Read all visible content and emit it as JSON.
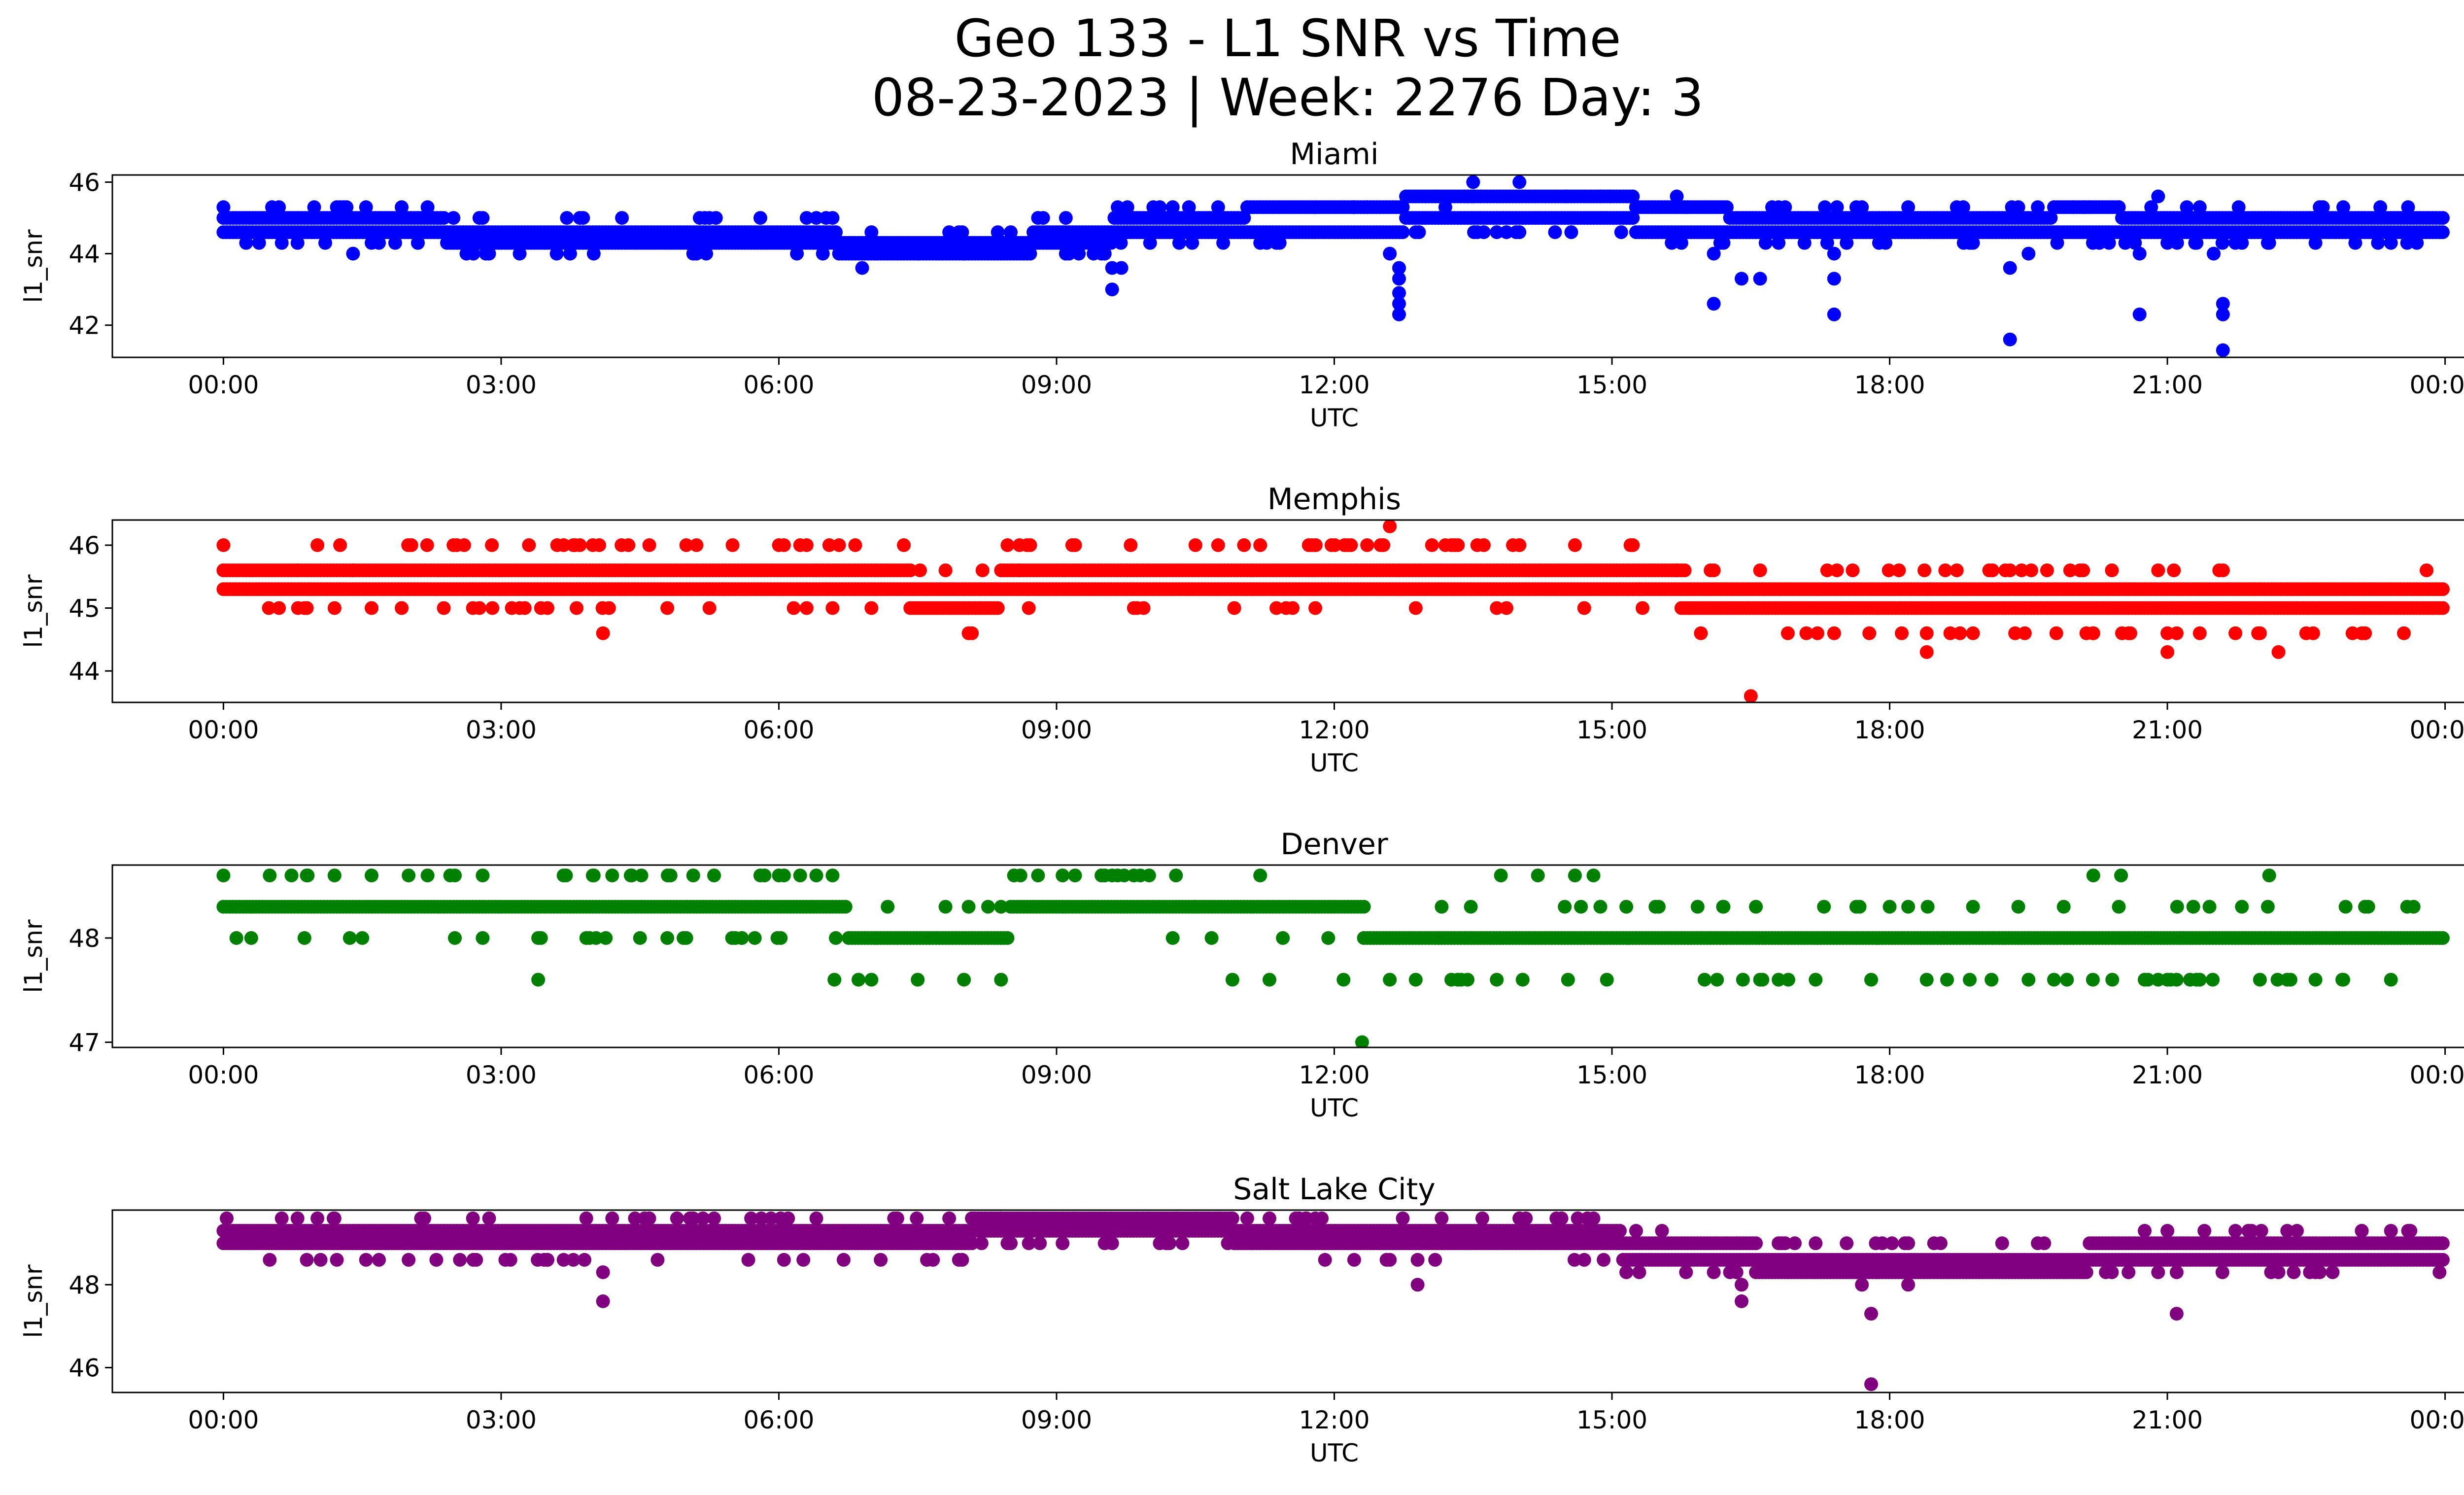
{
  "figure": {
    "title_line1": "Geo 133 - L1 SNR vs Time",
    "title_line2": "08-23-2023 | Week: 2276 Day: 3"
  },
  "chart_data": [
    {
      "type": "scatter",
      "title": "Miami",
      "xlabel": "UTC",
      "ylabel": "l1_snr",
      "color": "#0000ff",
      "xticks": [
        "00:00",
        "03:00",
        "06:00",
        "09:00",
        "12:00",
        "15:00",
        "18:00",
        "21:00",
        "00:00"
      ],
      "xlim_hours": [
        -1.2,
        25.2
      ],
      "ylim": [
        41.1,
        46.2
      ],
      "yticks": [
        42,
        44,
        46
      ],
      "levels": [
        44.0,
        44.3,
        44.6,
        45.0,
        45.3,
        45.6
      ],
      "baseline": [
        [
          0,
          44.6,
          45.0
        ],
        [
          1,
          44.6,
          45.0
        ],
        [
          2,
          44.6,
          45.0
        ],
        [
          2.8,
          44.3,
          44.6
        ],
        [
          3.5,
          44.3,
          44.6
        ],
        [
          5,
          44.3,
          44.6
        ],
        [
          6.5,
          44.3,
          44.6
        ],
        [
          6.8,
          44.0,
          44.3
        ],
        [
          8.5,
          44.0,
          44.3
        ],
        [
          9,
          44.3,
          44.6
        ],
        [
          10.2,
          44.6,
          45.0
        ],
        [
          11,
          44.6,
          45.0
        ],
        [
          11.1,
          44.6,
          45.3
        ],
        [
          12,
          44.6,
          45.3
        ],
        [
          13.5,
          45.0,
          45.6
        ],
        [
          15,
          45.0,
          45.6
        ],
        [
          15.5,
          44.6,
          45.3
        ],
        [
          17,
          44.6,
          45.0
        ],
        [
          19.5,
          44.6,
          45.0
        ],
        [
          20,
          44.6,
          45.3
        ],
        [
          21,
          44.6,
          45.0
        ],
        [
          24,
          44.6,
          45.0
        ]
      ],
      "points": [
        [
          0.0,
          45.3
        ],
        [
          0.6,
          45.3
        ],
        [
          1.3,
          45.3
        ],
        [
          0.8,
          44.3
        ],
        [
          1.1,
          44.3
        ],
        [
          1.4,
          44.0
        ],
        [
          1.6,
          44.3
        ],
        [
          2.1,
          44.3
        ],
        [
          2.7,
          44.0
        ],
        [
          3.2,
          44.0
        ],
        [
          3.6,
          44.0
        ],
        [
          4.0,
          44.0
        ],
        [
          5.2,
          45.0
        ],
        [
          5.8,
          45.0
        ],
        [
          6.3,
          45.0
        ],
        [
          6.9,
          43.6
        ],
        [
          7.5,
          44.0
        ],
        [
          8.0,
          44.0
        ],
        [
          8.8,
          45.0
        ],
        [
          9.1,
          45.0
        ],
        [
          9.6,
          43.6
        ],
        [
          9.6,
          43.0
        ],
        [
          9.7,
          43.6
        ],
        [
          9.4,
          44.0
        ],
        [
          10.8,
          44.3
        ],
        [
          11.2,
          44.3
        ],
        [
          12.2,
          45.3
        ],
        [
          12.6,
          44.0
        ],
        [
          12.7,
          43.6
        ],
        [
          12.7,
          43.3
        ],
        [
          12.7,
          42.9
        ],
        [
          12.7,
          42.6
        ],
        [
          12.7,
          42.3
        ],
        [
          13.2,
          45.3
        ],
        [
          13.5,
          45.6
        ],
        [
          13.5,
          46.0
        ],
        [
          14.0,
          46.0
        ],
        [
          14.0,
          44.6
        ],
        [
          14.5,
          45.6
        ],
        [
          15.1,
          44.6
        ],
        [
          15.7,
          45.6
        ],
        [
          16.1,
          44.0
        ],
        [
          16.1,
          42.6
        ],
        [
          16.4,
          43.3
        ],
        [
          16.6,
          43.3
        ],
        [
          16.8,
          44.3
        ],
        [
          17.3,
          45.3
        ],
        [
          17.4,
          44.0
        ],
        [
          17.4,
          43.3
        ],
        [
          17.4,
          42.3
        ],
        [
          17.7,
          45.3
        ],
        [
          18.2,
          45.3
        ],
        [
          18.8,
          44.3
        ],
        [
          19.3,
          43.6
        ],
        [
          19.3,
          41.6
        ],
        [
          19.5,
          44.0
        ],
        [
          20.1,
          45.3
        ],
        [
          20.7,
          44.0
        ],
        [
          20.7,
          42.3
        ],
        [
          20.9,
          45.6
        ],
        [
          21.3,
          44.3
        ],
        [
          21.5,
          44.0
        ],
        [
          21.6,
          42.6
        ],
        [
          21.6,
          42.3
        ],
        [
          21.6,
          41.3
        ],
        [
          22.1,
          44.3
        ],
        [
          22.6,
          44.3
        ],
        [
          22.9,
          45.3
        ],
        [
          23.3,
          45.3
        ],
        [
          23.6,
          45.3
        ]
      ]
    },
    {
      "type": "scatter",
      "title": "Memphis",
      "xlabel": "UTC",
      "ylabel": "l1_snr",
      "color": "#ff0000",
      "xticks": [
        "00:00",
        "03:00",
        "06:00",
        "09:00",
        "12:00",
        "15:00",
        "18:00",
        "21:00",
        "00:00"
      ],
      "xlim_hours": [
        -1.2,
        25.2
      ],
      "ylim": [
        43.5,
        46.4
      ],
      "yticks": [
        44,
        45,
        46
      ],
      "levels": [
        44.3,
        44.6,
        45.0,
        45.3,
        45.6,
        46.0
      ],
      "baseline": [
        [
          0,
          45.3,
          45.6
        ],
        [
          2,
          45.3,
          45.6
        ],
        [
          3,
          45.3,
          45.6
        ],
        [
          5,
          45.3,
          45.6
        ],
        [
          6,
          45.3,
          45.6
        ],
        [
          7.3,
          45.3,
          45.6
        ],
        [
          7.6,
          45.0,
          45.3
        ],
        [
          8.2,
          45.0,
          45.3
        ],
        [
          8.6,
          45.3,
          45.6
        ],
        [
          11,
          45.3,
          45.6
        ],
        [
          13,
          45.3,
          45.6
        ],
        [
          15.5,
          45.3,
          45.6
        ],
        [
          16,
          45.0,
          45.3
        ],
        [
          24,
          45.0,
          45.3
        ]
      ],
      "points": [
        [
          0.0,
          45.6
        ],
        [
          0.8,
          45.6
        ],
        [
          0.6,
          45.0
        ],
        [
          0.9,
          45.0
        ],
        [
          1.2,
          45.0
        ],
        [
          1.6,
          45.0
        ],
        [
          1.4,
          45.6
        ],
        [
          2.2,
          46.0
        ],
        [
          2.6,
          46.0
        ],
        [
          2.9,
          46.0
        ],
        [
          3.3,
          46.0
        ],
        [
          3.2,
          45.0
        ],
        [
          3.5,
          45.0
        ],
        [
          3.8,
          46.0
        ],
        [
          4.1,
          44.6
        ],
        [
          4.3,
          46.0
        ],
        [
          4.6,
          46.0
        ],
        [
          5.0,
          46.0
        ],
        [
          5.5,
          46.0
        ],
        [
          6.0,
          46.0
        ],
        [
          5.4,
          45.3
        ],
        [
          6.3,
          45.0
        ],
        [
          7.0,
          45.0
        ],
        [
          7.8,
          45.6
        ],
        [
          8.2,
          45.6
        ],
        [
          8.6,
          46.0
        ],
        [
          8.6,
          45.6
        ],
        [
          8.7,
          45.0
        ],
        [
          9.2,
          46.0
        ],
        [
          9.8,
          46.0
        ],
        [
          10.5,
          46.0
        ],
        [
          11.2,
          46.0
        ],
        [
          11.8,
          46.0
        ],
        [
          12.5,
          46.0
        ],
        [
          12.6,
          46.3
        ],
        [
          13.2,
          46.0
        ],
        [
          14.0,
          46.0
        ],
        [
          14.6,
          46.0
        ],
        [
          15.2,
          46.0
        ],
        [
          15.3,
          45.3
        ],
        [
          15.7,
          45.6
        ],
        [
          16.1,
          45.6
        ],
        [
          16.5,
          43.6
        ],
        [
          16.6,
          45.6
        ],
        [
          16.9,
          44.6
        ],
        [
          17.1,
          44.6
        ],
        [
          17.4,
          44.6
        ],
        [
          17.6,
          45.6
        ],
        [
          18.1,
          45.6
        ],
        [
          18.4,
          44.6
        ],
        [
          18.4,
          44.3
        ],
        [
          18.6,
          45.6
        ],
        [
          18.9,
          44.6
        ],
        [
          19.3,
          45.6
        ],
        [
          19.7,
          45.6
        ],
        [
          19.8,
          44.6
        ],
        [
          20.2,
          44.6
        ],
        [
          20.4,
          45.6
        ],
        [
          20.6,
          44.6
        ],
        [
          20.9,
          45.6
        ],
        [
          21.0,
          44.3
        ],
        [
          21.1,
          44.6
        ],
        [
          21.6,
          45.6
        ],
        [
          22.0,
          44.6
        ],
        [
          22.2,
          44.3
        ],
        [
          22.5,
          44.6
        ],
        [
          23.0,
          44.6
        ],
        [
          23.8,
          45.6
        ]
      ]
    },
    {
      "type": "scatter",
      "title": "Denver",
      "xlabel": "UTC",
      "ylabel": "l1_snr",
      "color": "#008000",
      "xticks": [
        "00:00",
        "03:00",
        "06:00",
        "09:00",
        "12:00",
        "15:00",
        "18:00",
        "21:00",
        "00:00"
      ],
      "xlim_hours": [
        -1.2,
        25.2
      ],
      "ylim": [
        46.95,
        48.7
      ],
      "yticks": [
        47,
        48
      ],
      "levels": [
        47.6,
        48.0,
        48.3,
        48.6
      ],
      "baseline": [
        [
          0,
          48.3
        ],
        [
          6.5,
          48.3
        ],
        [
          7.0,
          48.0
        ],
        [
          8.4,
          48.0
        ],
        [
          8.6,
          48.3
        ],
        [
          12.2,
          48.3
        ],
        [
          12.5,
          48.0
        ],
        [
          24,
          48.0
        ]
      ],
      "points": [
        [
          0.0,
          48.6
        ],
        [
          0.5,
          48.6
        ],
        [
          0.9,
          48.6
        ],
        [
          1.2,
          48.6
        ],
        [
          1.6,
          48.6
        ],
        [
          2.0,
          48.6
        ],
        [
          2.5,
          48.6
        ],
        [
          2.8,
          48.6
        ],
        [
          3.7,
          48.6
        ],
        [
          4.0,
          48.6
        ],
        [
          4.4,
          48.6
        ],
        [
          4.8,
          48.6
        ],
        [
          5.3,
          48.6
        ],
        [
          5.8,
          48.6
        ],
        [
          6.0,
          48.6
        ],
        [
          0.3,
          48.0
        ],
        [
          1.5,
          48.0
        ],
        [
          2.5,
          48.0
        ],
        [
          3.4,
          48.0
        ],
        [
          4.5,
          48.0
        ],
        [
          5.0,
          48.0
        ],
        [
          5.6,
          48.0
        ],
        [
          3.4,
          47.6
        ],
        [
          6.6,
          47.6
        ],
        [
          7.0,
          47.6
        ],
        [
          7.5,
          47.6
        ],
        [
          8.0,
          47.6
        ],
        [
          8.4,
          47.6
        ],
        [
          8.8,
          48.6
        ],
        [
          9.2,
          48.6
        ],
        [
          9.6,
          48.6
        ],
        [
          10.0,
          48.6
        ],
        [
          10.9,
          47.6
        ],
        [
          11.3,
          47.6
        ],
        [
          12.1,
          47.6
        ],
        [
          12.3,
          47.0
        ],
        [
          12.6,
          47.6
        ],
        [
          13.8,
          48.6
        ],
        [
          14.2,
          48.6
        ],
        [
          14.6,
          48.6
        ],
        [
          14.8,
          48.6
        ],
        [
          16.0,
          47.6
        ],
        [
          16.6,
          47.6
        ],
        [
          17.2,
          47.6
        ],
        [
          17.8,
          47.6
        ],
        [
          18.4,
          47.6
        ],
        [
          19.1,
          47.6
        ],
        [
          19.5,
          47.6
        ],
        [
          7.8,
          48.3
        ],
        [
          10.5,
          48.3
        ],
        [
          16.2,
          48.3
        ],
        [
          18.0,
          48.3
        ],
        [
          18.9,
          48.3
        ],
        [
          20.2,
          48.6
        ],
        [
          20.5,
          48.6
        ],
        [
          20.9,
          47.6
        ],
        [
          21.1,
          47.6
        ],
        [
          22.0,
          47.6
        ],
        [
          22.1,
          48.6
        ],
        [
          22.6,
          47.6
        ],
        [
          22.9,
          47.6
        ]
      ]
    },
    {
      "type": "scatter",
      "title": "Salt Lake City",
      "xlabel": "UTC",
      "ylabel": "l1_snr",
      "color": "#800080",
      "xticks": [
        "00:00",
        "03:00",
        "06:00",
        "09:00",
        "12:00",
        "15:00",
        "18:00",
        "21:00",
        "00:00"
      ],
      "xlim_hours": [
        -1.2,
        25.2
      ],
      "ylim": [
        45.4,
        49.8
      ],
      "yticks": [
        46,
        48
      ],
      "levels": [
        48.3,
        48.6,
        49.0,
        49.3,
        49.6
      ],
      "baseline": [
        [
          0,
          49.0,
          49.3
        ],
        [
          8,
          49.0,
          49.3
        ],
        [
          8.2,
          49.3,
          49.6
        ],
        [
          10.8,
          49.3,
          49.6
        ],
        [
          11,
          49.0,
          49.3
        ],
        [
          15,
          49.0,
          49.3
        ],
        [
          15.2,
          48.6,
          49.0
        ],
        [
          16.5,
          48.6,
          49.0
        ],
        [
          16.6,
          48.3,
          48.6
        ],
        [
          20.1,
          48.3,
          48.6
        ],
        [
          20.2,
          48.6,
          49.0
        ],
        [
          24,
          48.6,
          49.0
        ]
      ],
      "points": [
        [
          0.5,
          48.6
        ],
        [
          0.8,
          49.6
        ],
        [
          0.9,
          48.6
        ],
        [
          1.2,
          49.6
        ],
        [
          2.0,
          48.6
        ],
        [
          2.3,
          48.6
        ],
        [
          2.7,
          48.6
        ],
        [
          3.1,
          48.6
        ],
        [
          3.5,
          48.6
        ],
        [
          3.9,
          48.6
        ],
        [
          4.1,
          48.3
        ],
        [
          4.1,
          47.6
        ],
        [
          4.2,
          49.6
        ],
        [
          4.6,
          49.6
        ],
        [
          4.9,
          49.6
        ],
        [
          5.3,
          49.6
        ],
        [
          5.7,
          49.6
        ],
        [
          6.1,
          49.6
        ],
        [
          6.7,
          48.6
        ],
        [
          7.1,
          48.6
        ],
        [
          7.6,
          48.6
        ],
        [
          8.1,
          49.6
        ],
        [
          8.4,
          49.6
        ],
        [
          8.7,
          49.0
        ],
        [
          9.2,
          49.6
        ],
        [
          9.6,
          49.0
        ],
        [
          10.0,
          49.6
        ],
        [
          10.5,
          49.6
        ],
        [
          10.9,
          49.6
        ],
        [
          11.3,
          49.6
        ],
        [
          11.7,
          49.6
        ],
        [
          12.6,
          48.6
        ],
        [
          12.9,
          48.0
        ],
        [
          12.9,
          48.6
        ],
        [
          13.6,
          49.6
        ],
        [
          14.0,
          49.6
        ],
        [
          14.4,
          49.6
        ],
        [
          14.8,
          49.6
        ],
        [
          15.3,
          48.6
        ],
        [
          15.8,
          48.3
        ],
        [
          16.1,
          48.3
        ],
        [
          16.4,
          47.6
        ],
        [
          16.4,
          48.0
        ],
        [
          16.8,
          49.0
        ],
        [
          17.2,
          49.0
        ],
        [
          17.7,
          48.0
        ],
        [
          17.8,
          47.3
        ],
        [
          17.8,
          45.6
        ],
        [
          18.2,
          48.0
        ],
        [
          19.6,
          49.0
        ],
        [
          20.4,
          48.3
        ],
        [
          20.9,
          48.3
        ],
        [
          21.1,
          48.3
        ],
        [
          21.1,
          47.3
        ],
        [
          21.4,
          49.3
        ],
        [
          22.2,
          48.3
        ],
        [
          22.4,
          49.3
        ],
        [
          22.6,
          48.3
        ],
        [
          23.1,
          49.3
        ],
        [
          23.6,
          49.3
        ]
      ]
    }
  ]
}
